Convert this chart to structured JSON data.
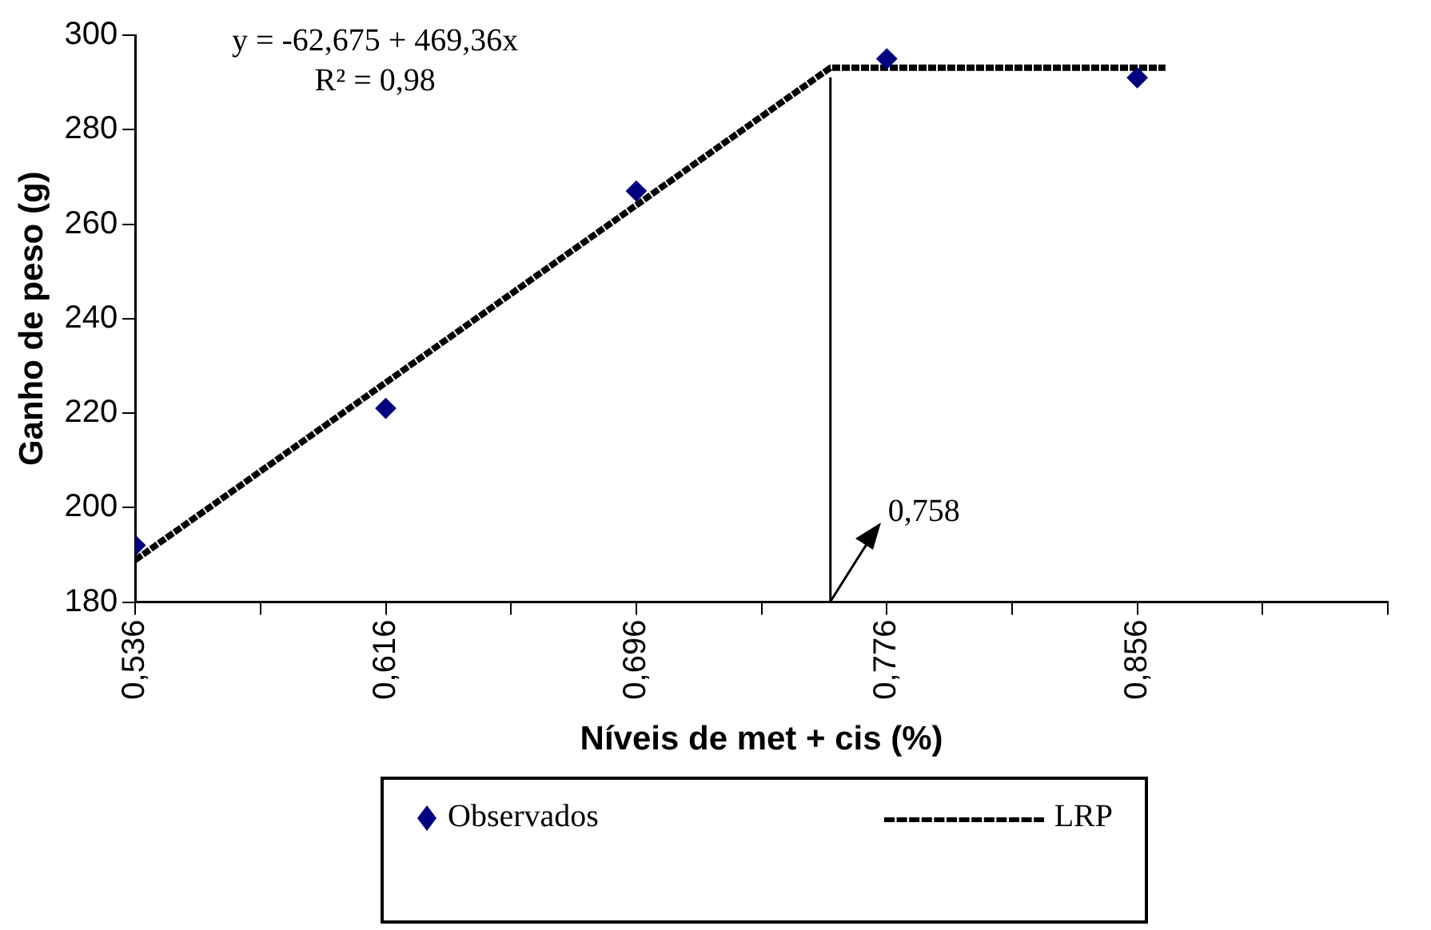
{
  "chart_data": {
    "type": "scatter",
    "xlabel": "Níveis de met + cis (%)",
    "ylabel": "Ganho de peso (g)",
    "xlim": [
      0.536,
      0.936
    ],
    "xticks": [
      {
        "value": 0.536,
        "label": "0,536"
      },
      {
        "value": 0.576,
        "label": null
      },
      {
        "value": 0.616,
        "label": "0,616"
      },
      {
        "value": 0.656,
        "label": null
      },
      {
        "value": 0.696,
        "label": "0,696"
      },
      {
        "value": 0.736,
        "label": null
      },
      {
        "value": 0.776,
        "label": "0,776"
      },
      {
        "value": 0.816,
        "label": null
      },
      {
        "value": 0.856,
        "label": "0,856"
      },
      {
        "value": 0.896,
        "label": null
      },
      {
        "value": 0.936,
        "label": null
      }
    ],
    "ylim": [
      180,
      300
    ],
    "yticks": [
      180,
      200,
      220,
      240,
      260,
      280,
      300
    ],
    "grid": false,
    "legend": "bottom",
    "marker": "diamond",
    "series": [
      {
        "name": "Observados",
        "type": "scatter",
        "color": "#000080",
        "x": [
          0.536,
          0.616,
          0.696,
          0.776,
          0.856
        ],
        "values": [
          192,
          221,
          267,
          295,
          291
        ]
      },
      {
        "name": "LRP",
        "type": "line",
        "color": "#000000",
        "line_style": "dashed",
        "marker": "none",
        "x": [
          0.536,
          0.758,
          0.865
        ],
        "values": [
          188.9,
          293.1,
          293.1
        ]
      }
    ],
    "ref_lines": [
      {
        "axis": "x",
        "value": 0.758,
        "label": "0,758",
        "color": "#000000"
      }
    ],
    "annotations": [
      "y = -62,675 + 469,36x",
      "R² = 0,98"
    ]
  }
}
